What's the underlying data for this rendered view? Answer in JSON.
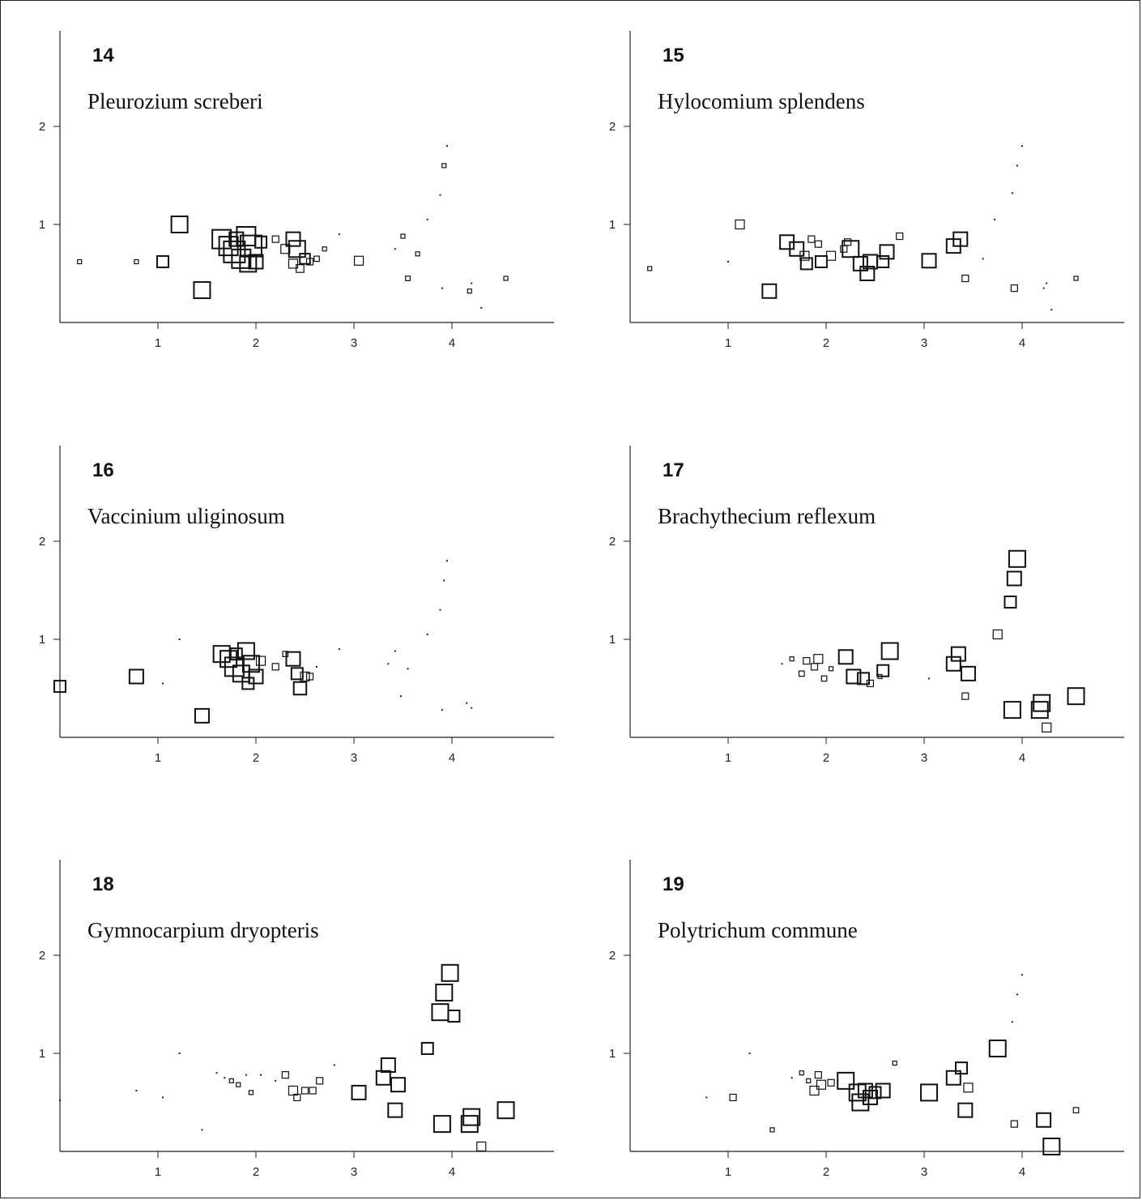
{
  "chart_data": [
    {
      "type": "scatter",
      "panel": "14",
      "title": "Pleurozium screberi",
      "xticks": [
        1,
        2,
        3,
        4
      ],
      "yticks": [
        1,
        2
      ],
      "xlim": [
        0.0,
        5.0
      ],
      "ylim": [
        0.05,
        2.0
      ],
      "marker": "open-square",
      "points": [
        {
          "x": 0.2,
          "y": 0.62,
          "s": 0.1
        },
        {
          "x": 0.78,
          "y": 0.62,
          "s": 0.1
        },
        {
          "x": 1.05,
          "y": 0.62,
          "s": 0.4
        },
        {
          "x": 1.22,
          "y": 1.0,
          "s": 0.6
        },
        {
          "x": 1.45,
          "y": 0.33,
          "s": 0.6
        },
        {
          "x": 1.65,
          "y": 0.85,
          "s": 0.7
        },
        {
          "x": 1.72,
          "y": 0.78,
          "s": 0.7
        },
        {
          "x": 1.78,
          "y": 0.72,
          "s": 0.8
        },
        {
          "x": 1.85,
          "y": 0.65,
          "s": 0.7
        },
        {
          "x": 1.9,
          "y": 0.88,
          "s": 0.7
        },
        {
          "x": 1.95,
          "y": 0.78,
          "s": 0.8
        },
        {
          "x": 1.8,
          "y": 0.85,
          "s": 0.5
        },
        {
          "x": 2.0,
          "y": 0.62,
          "s": 0.5
        },
        {
          "x": 1.92,
          "y": 0.6,
          "s": 0.6
        },
        {
          "x": 2.05,
          "y": 0.82,
          "s": 0.4
        },
        {
          "x": 2.2,
          "y": 0.85,
          "s": 0.2
        },
        {
          "x": 2.3,
          "y": 0.75,
          "s": 0.3
        },
        {
          "x": 2.38,
          "y": 0.85,
          "s": 0.5
        },
        {
          "x": 2.42,
          "y": 0.75,
          "s": 0.6
        },
        {
          "x": 2.5,
          "y": 0.65,
          "s": 0.35
        },
        {
          "x": 2.38,
          "y": 0.6,
          "s": 0.3
        },
        {
          "x": 2.45,
          "y": 0.55,
          "s": 0.25
        },
        {
          "x": 2.55,
          "y": 0.62,
          "s": 0.2
        },
        {
          "x": 2.62,
          "y": 0.65,
          "s": 0.15
        },
        {
          "x": 2.7,
          "y": 0.75,
          "s": 0.1
        },
        {
          "x": 2.85,
          "y": 0.9,
          "s": 0.05
        },
        {
          "x": 3.05,
          "y": 0.63,
          "s": 0.3
        },
        {
          "x": 3.42,
          "y": 0.75,
          "s": 0.05
        },
        {
          "x": 3.5,
          "y": 0.88,
          "s": 0.1
        },
        {
          "x": 3.55,
          "y": 0.45,
          "s": 0.12
        },
        {
          "x": 3.65,
          "y": 0.7,
          "s": 0.1
        },
        {
          "x": 3.75,
          "y": 1.05,
          "s": 0.05
        },
        {
          "x": 3.88,
          "y": 1.3,
          "s": 0.05
        },
        {
          "x": 3.92,
          "y": 1.6,
          "s": 0.1
        },
        {
          "x": 3.95,
          "y": 1.8,
          "s": 0.05
        },
        {
          "x": 3.9,
          "y": 0.35,
          "s": 0.05
        },
        {
          "x": 4.18,
          "y": 0.32,
          "s": 0.1
        },
        {
          "x": 4.2,
          "y": 0.4,
          "s": 0.05
        },
        {
          "x": 4.3,
          "y": 0.15,
          "s": 0.05
        },
        {
          "x": 4.55,
          "y": 0.45,
          "s": 0.1
        }
      ]
    },
    {
      "type": "scatter",
      "panel": "15",
      "title": "Hylocomium splendens",
      "xticks": [
        1,
        2,
        3,
        4
      ],
      "yticks": [
        1,
        2
      ],
      "xlim": [
        0.0,
        5.0
      ],
      "ylim": [
        0.05,
        2.0
      ],
      "marker": "open-square",
      "points": [
        {
          "x": 0.2,
          "y": 0.55,
          "s": 0.1
        },
        {
          "x": 1.0,
          "y": 0.62,
          "s": 0.05
        },
        {
          "x": 1.12,
          "y": 1.0,
          "s": 0.3
        },
        {
          "x": 1.42,
          "y": 0.32,
          "s": 0.5
        },
        {
          "x": 1.6,
          "y": 0.82,
          "s": 0.5
        },
        {
          "x": 1.7,
          "y": 0.75,
          "s": 0.5
        },
        {
          "x": 1.78,
          "y": 0.68,
          "s": 0.3
        },
        {
          "x": 1.85,
          "y": 0.85,
          "s": 0.2
        },
        {
          "x": 1.8,
          "y": 0.6,
          "s": 0.4
        },
        {
          "x": 1.95,
          "y": 0.62,
          "s": 0.4
        },
        {
          "x": 1.92,
          "y": 0.8,
          "s": 0.2
        },
        {
          "x": 2.05,
          "y": 0.68,
          "s": 0.3
        },
        {
          "x": 2.18,
          "y": 0.75,
          "s": 0.2
        },
        {
          "x": 2.22,
          "y": 0.82,
          "s": 0.2
        },
        {
          "x": 2.25,
          "y": 0.75,
          "s": 0.6
        },
        {
          "x": 2.35,
          "y": 0.6,
          "s": 0.5
        },
        {
          "x": 2.45,
          "y": 0.62,
          "s": 0.5
        },
        {
          "x": 2.42,
          "y": 0.5,
          "s": 0.5
        },
        {
          "x": 2.58,
          "y": 0.62,
          "s": 0.4
        },
        {
          "x": 2.62,
          "y": 0.72,
          "s": 0.5
        },
        {
          "x": 2.75,
          "y": 0.88,
          "s": 0.2
        },
        {
          "x": 3.05,
          "y": 0.63,
          "s": 0.5
        },
        {
          "x": 3.3,
          "y": 0.78,
          "s": 0.5
        },
        {
          "x": 3.37,
          "y": 0.85,
          "s": 0.5
        },
        {
          "x": 3.42,
          "y": 0.45,
          "s": 0.2
        },
        {
          "x": 3.6,
          "y": 0.65,
          "s": 0.05
        },
        {
          "x": 3.72,
          "y": 1.05,
          "s": 0.05
        },
        {
          "x": 3.9,
          "y": 1.32,
          "s": 0.05
        },
        {
          "x": 3.95,
          "y": 1.6,
          "s": 0.05
        },
        {
          "x": 4.0,
          "y": 1.8,
          "s": 0.05
        },
        {
          "x": 3.92,
          "y": 0.35,
          "s": 0.2
        },
        {
          "x": 4.22,
          "y": 0.35,
          "s": 0.05
        },
        {
          "x": 4.25,
          "y": 0.4,
          "s": 0.05
        },
        {
          "x": 4.3,
          "y": 0.13,
          "s": 0.05
        },
        {
          "x": 4.55,
          "y": 0.45,
          "s": 0.1
        }
      ]
    },
    {
      "type": "scatter",
      "panel": "16",
      "title": "Vaccinium uliginosum",
      "xticks": [
        1,
        2,
        3,
        4
      ],
      "yticks": [
        1,
        2
      ],
      "xlim": [
        0.0,
        5.0
      ],
      "ylim": [
        0.05,
        2.0
      ],
      "marker": "open-square",
      "points": [
        {
          "x": 0.0,
          "y": 0.52,
          "s": 0.4
        },
        {
          "x": 0.78,
          "y": 0.62,
          "s": 0.5
        },
        {
          "x": 1.05,
          "y": 0.55,
          "s": 0.05
        },
        {
          "x": 1.22,
          "y": 1.0,
          "s": 0.05
        },
        {
          "x": 1.45,
          "y": 0.22,
          "s": 0.5
        },
        {
          "x": 1.65,
          "y": 0.85,
          "s": 0.6
        },
        {
          "x": 1.72,
          "y": 0.8,
          "s": 0.6
        },
        {
          "x": 1.78,
          "y": 0.72,
          "s": 0.7
        },
        {
          "x": 1.85,
          "y": 0.65,
          "s": 0.6
        },
        {
          "x": 1.9,
          "y": 0.88,
          "s": 0.6
        },
        {
          "x": 1.95,
          "y": 0.75,
          "s": 0.6
        },
        {
          "x": 1.8,
          "y": 0.85,
          "s": 0.4
        },
        {
          "x": 2.0,
          "y": 0.62,
          "s": 0.5
        },
        {
          "x": 1.92,
          "y": 0.55,
          "s": 0.4
        },
        {
          "x": 2.05,
          "y": 0.78,
          "s": 0.3
        },
        {
          "x": 2.2,
          "y": 0.72,
          "s": 0.2
        },
        {
          "x": 2.3,
          "y": 0.85,
          "s": 0.15
        },
        {
          "x": 2.38,
          "y": 0.8,
          "s": 0.5
        },
        {
          "x": 2.42,
          "y": 0.65,
          "s": 0.4
        },
        {
          "x": 2.5,
          "y": 0.62,
          "s": 0.3
        },
        {
          "x": 2.45,
          "y": 0.5,
          "s": 0.45
        },
        {
          "x": 2.55,
          "y": 0.62,
          "s": 0.2
        },
        {
          "x": 2.62,
          "y": 0.72,
          "s": 0.05
        },
        {
          "x": 2.85,
          "y": 0.9,
          "s": 0.05
        },
        {
          "x": 3.35,
          "y": 0.75,
          "s": 0.05
        },
        {
          "x": 3.42,
          "y": 0.88,
          "s": 0.05
        },
        {
          "x": 3.48,
          "y": 0.42,
          "s": 0.05
        },
        {
          "x": 3.55,
          "y": 0.7,
          "s": 0.05
        },
        {
          "x": 3.75,
          "y": 1.05,
          "s": 0.05
        },
        {
          "x": 3.88,
          "y": 1.3,
          "s": 0.05
        },
        {
          "x": 3.92,
          "y": 1.6,
          "s": 0.05
        },
        {
          "x": 3.95,
          "y": 1.8,
          "s": 0.05
        },
        {
          "x": 3.9,
          "y": 0.28,
          "s": 0.05
        },
        {
          "x": 4.15,
          "y": 0.35,
          "s": 0.05
        },
        {
          "x": 4.2,
          "y": 0.3,
          "s": 0.05
        }
      ]
    },
    {
      "type": "scatter",
      "panel": "17",
      "title": "Brachythecium reflexum",
      "xticks": [
        1,
        2,
        3,
        4
      ],
      "yticks": [
        1,
        2
      ],
      "xlim": [
        0.0,
        5.0
      ],
      "ylim": [
        0.05,
        2.0
      ],
      "marker": "open-square",
      "points": [
        {
          "x": 1.55,
          "y": 0.75,
          "s": 0.05
        },
        {
          "x": 1.65,
          "y": 0.8,
          "s": 0.1
        },
        {
          "x": 1.75,
          "y": 0.65,
          "s": 0.15
        },
        {
          "x": 1.8,
          "y": 0.78,
          "s": 0.2
        },
        {
          "x": 1.88,
          "y": 0.72,
          "s": 0.2
        },
        {
          "x": 1.92,
          "y": 0.8,
          "s": 0.3
        },
        {
          "x": 1.98,
          "y": 0.6,
          "s": 0.15
        },
        {
          "x": 2.05,
          "y": 0.7,
          "s": 0.1
        },
        {
          "x": 2.2,
          "y": 0.82,
          "s": 0.5
        },
        {
          "x": 2.28,
          "y": 0.62,
          "s": 0.5
        },
        {
          "x": 2.38,
          "y": 0.6,
          "s": 0.4
        },
        {
          "x": 2.45,
          "y": 0.55,
          "s": 0.2
        },
        {
          "x": 2.55,
          "y": 0.62,
          "s": 0.1
        },
        {
          "x": 2.58,
          "y": 0.68,
          "s": 0.4
        },
        {
          "x": 2.65,
          "y": 0.88,
          "s": 0.6
        },
        {
          "x": 3.05,
          "y": 0.6,
          "s": 0.05
        },
        {
          "x": 3.3,
          "y": 0.75,
          "s": 0.5
        },
        {
          "x": 3.35,
          "y": 0.85,
          "s": 0.5
        },
        {
          "x": 3.45,
          "y": 0.65,
          "s": 0.5
        },
        {
          "x": 3.42,
          "y": 0.42,
          "s": 0.2
        },
        {
          "x": 3.75,
          "y": 1.05,
          "s": 0.3
        },
        {
          "x": 3.88,
          "y": 1.38,
          "s": 0.4
        },
        {
          "x": 3.92,
          "y": 1.62,
          "s": 0.5
        },
        {
          "x": 3.95,
          "y": 1.82,
          "s": 0.6
        },
        {
          "x": 3.9,
          "y": 0.28,
          "s": 0.6
        },
        {
          "x": 4.18,
          "y": 0.28,
          "s": 0.6
        },
        {
          "x": 4.2,
          "y": 0.35,
          "s": 0.6
        },
        {
          "x": 4.25,
          "y": 0.1,
          "s": 0.3
        },
        {
          "x": 4.55,
          "y": 0.42,
          "s": 0.6
        }
      ]
    },
    {
      "type": "scatter",
      "panel": "18",
      "title": "Gymnocarpium dryopteris",
      "xticks": [
        1,
        2,
        3,
        4
      ],
      "yticks": [
        1,
        2
      ],
      "xlim": [
        0.0,
        5.0
      ],
      "ylim": [
        0.05,
        2.0
      ],
      "marker": "open-square",
      "points": [
        {
          "x": 0.0,
          "y": 0.52,
          "s": 0.05
        },
        {
          "x": 0.78,
          "y": 0.62,
          "s": 0.05
        },
        {
          "x": 1.05,
          "y": 0.55,
          "s": 0.05
        },
        {
          "x": 1.22,
          "y": 1.0,
          "s": 0.05
        },
        {
          "x": 1.45,
          "y": 0.22,
          "s": 0.05
        },
        {
          "x": 1.6,
          "y": 0.8,
          "s": 0.05
        },
        {
          "x": 1.68,
          "y": 0.75,
          "s": 0.05
        },
        {
          "x": 1.75,
          "y": 0.72,
          "s": 0.1
        },
        {
          "x": 1.82,
          "y": 0.68,
          "s": 0.1
        },
        {
          "x": 1.9,
          "y": 0.78,
          "s": 0.05
        },
        {
          "x": 1.95,
          "y": 0.6,
          "s": 0.1
        },
        {
          "x": 2.05,
          "y": 0.78,
          "s": 0.05
        },
        {
          "x": 2.2,
          "y": 0.72,
          "s": 0.05
        },
        {
          "x": 2.3,
          "y": 0.78,
          "s": 0.2
        },
        {
          "x": 2.38,
          "y": 0.62,
          "s": 0.3
        },
        {
          "x": 2.42,
          "y": 0.55,
          "s": 0.2
        },
        {
          "x": 2.5,
          "y": 0.62,
          "s": 0.2
        },
        {
          "x": 2.58,
          "y": 0.62,
          "s": 0.2
        },
        {
          "x": 2.65,
          "y": 0.72,
          "s": 0.2
        },
        {
          "x": 2.8,
          "y": 0.88,
          "s": 0.05
        },
        {
          "x": 3.05,
          "y": 0.6,
          "s": 0.5
        },
        {
          "x": 3.3,
          "y": 0.75,
          "s": 0.5
        },
        {
          "x": 3.35,
          "y": 0.88,
          "s": 0.5
        },
        {
          "x": 3.45,
          "y": 0.68,
          "s": 0.5
        },
        {
          "x": 3.42,
          "y": 0.42,
          "s": 0.5
        },
        {
          "x": 3.75,
          "y": 1.05,
          "s": 0.4
        },
        {
          "x": 3.88,
          "y": 1.42,
          "s": 0.6
        },
        {
          "x": 3.92,
          "y": 1.62,
          "s": 0.6
        },
        {
          "x": 3.98,
          "y": 1.82,
          "s": 0.6
        },
        {
          "x": 4.02,
          "y": 1.38,
          "s": 0.4
        },
        {
          "x": 3.9,
          "y": 0.28,
          "s": 0.6
        },
        {
          "x": 4.18,
          "y": 0.28,
          "s": 0.6
        },
        {
          "x": 4.2,
          "y": 0.35,
          "s": 0.6
        },
        {
          "x": 4.3,
          "y": 0.05,
          "s": 0.3
        },
        {
          "x": 4.55,
          "y": 0.42,
          "s": 0.6
        }
      ]
    },
    {
      "type": "scatter",
      "panel": "19",
      "title": "Polytrichum commune",
      "xticks": [
        1,
        2,
        3,
        4
      ],
      "yticks": [
        1,
        2
      ],
      "xlim": [
        0.0,
        5.0
      ],
      "ylim": [
        0.05,
        2.0
      ],
      "marker": "open-square",
      "points": [
        {
          "x": 0.78,
          "y": 0.55,
          "s": 0.05
        },
        {
          "x": 1.05,
          "y": 0.55,
          "s": 0.2
        },
        {
          "x": 1.22,
          "y": 1.0,
          "s": 0.05
        },
        {
          "x": 1.45,
          "y": 0.22,
          "s": 0.1
        },
        {
          "x": 1.65,
          "y": 0.75,
          "s": 0.05
        },
        {
          "x": 1.75,
          "y": 0.8,
          "s": 0.1
        },
        {
          "x": 1.82,
          "y": 0.72,
          "s": 0.1
        },
        {
          "x": 1.88,
          "y": 0.62,
          "s": 0.3
        },
        {
          "x": 1.92,
          "y": 0.78,
          "s": 0.2
        },
        {
          "x": 1.95,
          "y": 0.68,
          "s": 0.3
        },
        {
          "x": 2.05,
          "y": 0.7,
          "s": 0.2
        },
        {
          "x": 2.2,
          "y": 0.72,
          "s": 0.6
        },
        {
          "x": 2.32,
          "y": 0.6,
          "s": 0.6
        },
        {
          "x": 2.35,
          "y": 0.5,
          "s": 0.6
        },
        {
          "x": 2.4,
          "y": 0.62,
          "s": 0.5
        },
        {
          "x": 2.45,
          "y": 0.55,
          "s": 0.5
        },
        {
          "x": 2.5,
          "y": 0.6,
          "s": 0.4
        },
        {
          "x": 2.58,
          "y": 0.62,
          "s": 0.5
        },
        {
          "x": 2.7,
          "y": 0.9,
          "s": 0.1
        },
        {
          "x": 3.05,
          "y": 0.6,
          "s": 0.6
        },
        {
          "x": 3.3,
          "y": 0.75,
          "s": 0.5
        },
        {
          "x": 3.38,
          "y": 0.85,
          "s": 0.4
        },
        {
          "x": 3.45,
          "y": 0.65,
          "s": 0.3
        },
        {
          "x": 3.42,
          "y": 0.42,
          "s": 0.5
        },
        {
          "x": 3.75,
          "y": 1.05,
          "s": 0.6
        },
        {
          "x": 3.9,
          "y": 1.32,
          "s": 0.05
        },
        {
          "x": 3.95,
          "y": 1.6,
          "s": 0.05
        },
        {
          "x": 4.0,
          "y": 1.8,
          "s": 0.05
        },
        {
          "x": 3.92,
          "y": 0.28,
          "s": 0.2
        },
        {
          "x": 4.22,
          "y": 0.32,
          "s": 0.5
        },
        {
          "x": 4.3,
          "y": 0.05,
          "s": 0.6
        },
        {
          "x": 4.55,
          "y": 0.42,
          "s": 0.15
        }
      ]
    }
  ]
}
